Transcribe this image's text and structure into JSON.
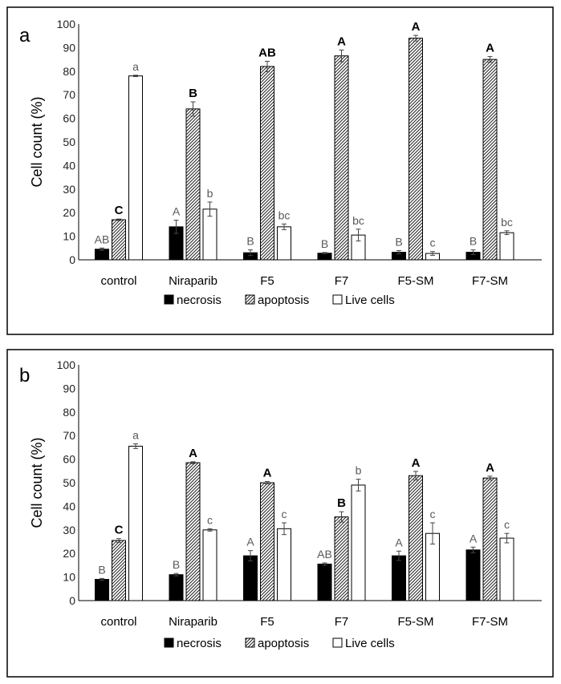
{
  "chart_data": [
    {
      "type": "bar",
      "panel_label": "a",
      "ylabel": "Cell count (%)",
      "ylim": [
        0,
        100
      ],
      "yticks": [
        "0",
        "10",
        "20",
        "30",
        "40",
        "50",
        "60",
        "70",
        "80",
        "90",
        "100"
      ],
      "categories": [
        "control",
        "Niraparib",
        "F5",
        "F7",
        "F5-SM",
        "F7-SM"
      ],
      "series": [
        {
          "name": "necrosis",
          "fill": "solid-black",
          "values": [
            4.5,
            14,
            3,
            2.8,
            3.2,
            3.2
          ],
          "errors": [
            0.5,
            2.8,
            1.2,
            0.3,
            0.7,
            1.0
          ],
          "letters": [
            "AB",
            "A",
            "B",
            "B",
            "B",
            "B"
          ]
        },
        {
          "name": "apoptosis",
          "fill": "hatched",
          "values": [
            17,
            64,
            82,
            86.5,
            94,
            85
          ],
          "errors": [
            0.3,
            3.0,
            2.2,
            2.5,
            1.2,
            1.2
          ],
          "letters": [
            "C",
            "B",
            "AB",
            "A",
            "A",
            "A"
          ]
        },
        {
          "name": "Live cells",
          "fill": "white",
          "values": [
            78,
            21.5,
            14,
            10.5,
            2.7,
            11.5
          ],
          "errors": [
            0.3,
            3.0,
            1.2,
            2.5,
            0.8,
            0.8
          ],
          "letters": [
            "a",
            "b",
            "bc",
            "bc",
            "c",
            "bc"
          ]
        }
      ],
      "legend": {
        "position": "bottom",
        "items": [
          "necrosis",
          "apoptosis",
          "Live cells"
        ]
      },
      "grid": false
    },
    {
      "type": "bar",
      "panel_label": "b",
      "ylabel": "Cell count (%)",
      "ylim": [
        0,
        100
      ],
      "yticks": [
        "0",
        "10",
        "20",
        "30",
        "40",
        "50",
        "60",
        "70",
        "80",
        "90",
        "100"
      ],
      "categories": [
        "control",
        "Niraparib",
        "F5",
        "F7",
        "F5-SM",
        "F7-SM"
      ],
      "series": [
        {
          "name": "necrosis",
          "fill": "solid-black",
          "values": [
            9,
            11,
            19,
            15.5,
            19,
            21.5
          ],
          "errors": [
            0.4,
            0.5,
            2.2,
            0.5,
            2.0,
            1.2
          ],
          "letters": [
            "B",
            "B",
            "A",
            "AB",
            "A",
            "A"
          ]
        },
        {
          "name": "apoptosis",
          "fill": "hatched",
          "values": [
            25.5,
            58.5,
            50,
            35.5,
            53,
            52
          ],
          "errors": [
            0.8,
            0.4,
            0.5,
            2.2,
            1.8,
            0.8
          ],
          "letters": [
            "C",
            "A",
            "A",
            "B",
            "A",
            "A"
          ]
        },
        {
          "name": "Live cells",
          "fill": "white",
          "values": [
            65.5,
            30,
            30.5,
            49,
            28.5,
            26.5
          ],
          "errors": [
            1.0,
            0.5,
            2.5,
            2.5,
            4.5,
            2.0
          ],
          "letters": [
            "a",
            "c",
            "c",
            "b",
            "c",
            "c"
          ]
        }
      ],
      "legend": {
        "position": "bottom",
        "items": [
          "necrosis",
          "apoptosis",
          "Live cells"
        ]
      },
      "grid": false
    }
  ]
}
